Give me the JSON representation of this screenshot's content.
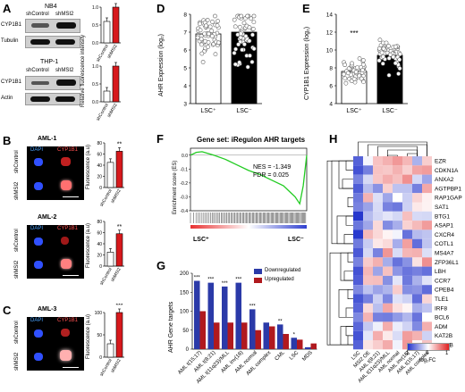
{
  "panels": {
    "A": {
      "label": "A",
      "nb4": "NB4",
      "thp1": "THP-1",
      "shcontrol": "shControl",
      "shmsi2": "shMSI2",
      "cyp1b1": "CYP1B1",
      "tubulin": "Tubulin",
      "actin": "Actin",
      "ylabel": "Relative fluorescence intensity",
      "yticks": [
        "0.0",
        "0.5",
        "1.0"
      ],
      "categories": [
        "shControl",
        "shMSI2"
      ]
    },
    "B": {
      "label": "B",
      "aml1": "AML-1",
      "aml2": "AML-2",
      "dapi": "DAPI",
      "cyp1b1": "CYP1B1",
      "shcontrol": "shControl",
      "shmsi2": "shMSI2",
      "ylabel": "Fluorescence (a.u)",
      "sig": "**",
      "yticks1": [
        "0",
        "20",
        "40",
        "60",
        "80"
      ],
      "yticks2": [
        "0",
        "20",
        "40",
        "60",
        "80"
      ],
      "categories": [
        "shControl",
        "shMSI2"
      ]
    },
    "C": {
      "label": "C",
      "aml3": "AML-3",
      "dapi": "DAPI",
      "cyp1b1": "CYP1B1",
      "shcontrol": "shControl",
      "shmsi2": "shMSI2",
      "ylabel": "Fluorescence (a.u)",
      "sig": "***",
      "yticks": [
        "0",
        "50",
        "100"
      ],
      "categories": [
        "shControl",
        "shMSI2"
      ]
    },
    "D": {
      "label": "D",
      "ylabel": "AHR Expression (log₂)",
      "yticks": [
        "3",
        "4",
        "5",
        "6",
        "7",
        "8"
      ],
      "categories": [
        "LSC⁺",
        "LSC⁻"
      ]
    },
    "E": {
      "label": "E",
      "ylabel": "CYP1B1 Expression (log₂)",
      "sig": "***",
      "yticks": [
        "4",
        "6",
        "8",
        "10",
        "12",
        "14"
      ],
      "categories": [
        "LSC⁺",
        "LSC⁻"
      ]
    },
    "F": {
      "label": "F",
      "title": "Gene set: iRegulon AHR targets",
      "nes": "NES = -1.349",
      "fdr": "FDR = 0.025",
      "ylabel": "Enrichment score (ES)",
      "yticks": [
        "0.0",
        "-0.1",
        "-0.2",
        "-0.3",
        "-0.4"
      ],
      "left": "LSC⁺",
      "right": "LSC⁻"
    },
    "G": {
      "label": "G",
      "ylabel": "AHR Gene targets",
      "yticks": [
        "0",
        "50",
        "100",
        "150",
        "200"
      ],
      "legend_down": "Downregulated",
      "legend_up": "Upregulated"
    },
    "H": {
      "label": "H",
      "scale_min": "-1",
      "scale_zero": "0",
      "scale_max": "1",
      "scale_label": "log₂FC",
      "columns": [
        "LSC",
        "MSI2 OE",
        "AML t(8;21)",
        "AML t(11q23)/MLL",
        "AML normal",
        "AML inv(16)",
        "AML t(15;17)",
        "AML complex"
      ],
      "rows": [
        "EZR",
        "CDKN1A",
        "ANXA2",
        "AGTPBP1",
        "RAP1GAP",
        "SAT1",
        "BTG1",
        "ASAP1",
        "CXCR4",
        "COTL1",
        "MS4A7",
        "ZFP36L1",
        "LBH",
        "CCR7",
        "CPEB4",
        "TLE1",
        "IRF8",
        "BCL6",
        "ADM",
        "KAT2B",
        "BLVRB"
      ]
    }
  },
  "chart_data": [
    {
      "type": "bar",
      "panel": "A-NB4",
      "categories": [
        "shControl",
        "shMSI2"
      ],
      "values": [
        0.6,
        1.0
      ],
      "ylim": [
        0,
        1.0
      ],
      "ylabel": "Relative fluorescence intensity"
    },
    {
      "type": "bar",
      "panel": "A-THP-1",
      "categories": [
        "shControl",
        "shMSI2"
      ],
      "values": [
        0.3,
        1.0
      ],
      "ylim": [
        0,
        1.0
      ],
      "ylabel": "Relative fluorescence intensity"
    },
    {
      "type": "bar",
      "panel": "B-AML-1",
      "categories": [
        "shControl",
        "shMSI2"
      ],
      "values": [
        45,
        65
      ],
      "ylim": [
        0,
        80
      ],
      "ylabel": "Fluorescence (a.u)"
    },
    {
      "type": "bar",
      "panel": "B-AML-2",
      "categories": [
        "shControl",
        "shMSI2"
      ],
      "values": [
        25,
        58
      ],
      "ylim": [
        0,
        80
      ],
      "ylabel": "Fluorescence (a.u)"
    },
    {
      "type": "bar",
      "panel": "C-AML-3",
      "categories": [
        "shControl",
        "shMSI2"
      ],
      "values": [
        30,
        100
      ],
      "ylim": [
        0,
        100
      ],
      "ylabel": "Fluorescence (a.u)"
    },
    {
      "type": "bar",
      "panel": "D",
      "categories": [
        "LSC⁺",
        "LSC⁻"
      ],
      "values": [
        6.9,
        7.0
      ],
      "ylim": [
        3,
        8
      ],
      "ylabel": "AHR Expression (log₂)"
    },
    {
      "type": "bar",
      "panel": "E",
      "categories": [
        "LSC⁺",
        "LSC⁻"
      ],
      "values": [
        7.6,
        9.4
      ],
      "ylim": [
        4,
        14
      ],
      "ylabel": "CYP1B1 Expression (log₂)"
    },
    {
      "type": "line",
      "panel": "F",
      "ylabel": "Enrichment score (ES)",
      "ylim": [
        -0.4,
        0.05
      ],
      "x": [
        0,
        0.05,
        0.1,
        0.2,
        0.3,
        0.4,
        0.5,
        0.6,
        0.7,
        0.8,
        0.85,
        0.9,
        0.94,
        0.97,
        1.0
      ],
      "y": [
        0,
        0.02,
        0.025,
        0.0,
        -0.03,
        -0.07,
        -0.11,
        -0.14,
        -0.18,
        -0.22,
        -0.26,
        -0.3,
        -0.35,
        -0.22,
        0
      ]
    },
    {
      "type": "bar",
      "panel": "G",
      "ylabel": "AHR Gene targets",
      "ylim": [
        0,
        200
      ],
      "categories": [
        "AML t(15;17)",
        "AML t(8;21)",
        "AML t(11q23)/MLL",
        "AML inv(16)",
        "AML normal",
        "AML complex",
        "CML",
        "LSC",
        "MDS"
      ],
      "series": [
        {
          "name": "Downregulated",
          "values": [
            180,
            175,
            165,
            175,
            105,
            70,
            65,
            30,
            5
          ],
          "sig": [
            "***",
            "***",
            "***",
            "***",
            "***",
            "",
            "**",
            "*",
            ""
          ]
        },
        {
          "name": "Upregulated",
          "values": [
            100,
            70,
            70,
            70,
            50,
            60,
            40,
            25,
            15
          ]
        }
      ]
    },
    {
      "type": "heatmap",
      "panel": "H",
      "colors": {
        "neg": "#2233cc",
        "zero": "#ffffff",
        "pos": "#e02020"
      }
    }
  ]
}
